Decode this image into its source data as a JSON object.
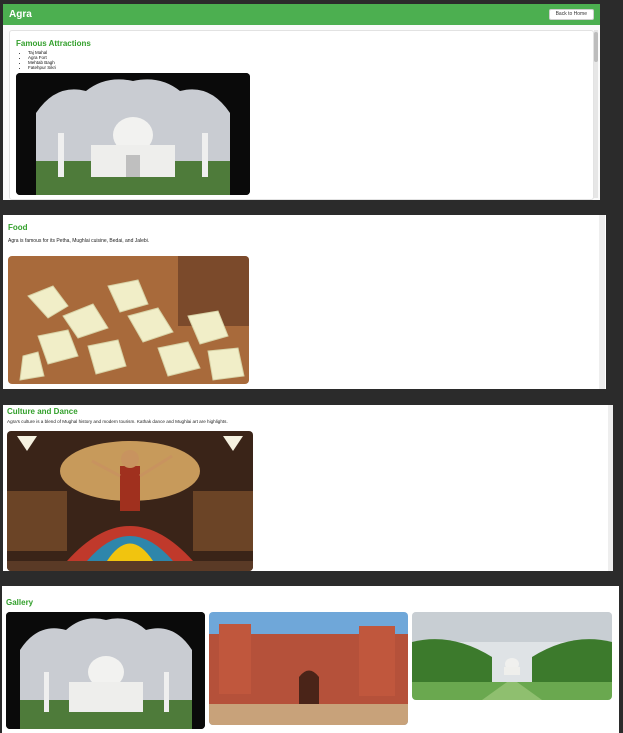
{
  "header": {
    "title": "Agra",
    "back_button": "Back to Home"
  },
  "attractions": {
    "heading": "Famous Attractions",
    "items": [
      "Taj Mahal",
      "Agra Fort",
      "Mehtab Bagh",
      "Fatehpur Sikri"
    ],
    "image_icon": "taj-mahal-photo"
  },
  "food": {
    "heading": "Food",
    "text": "Agra is famous for its Petha, Mughlai cuisine, Bedai, and Jalebi.",
    "image_icon": "petha-photo"
  },
  "culture": {
    "heading": "Culture and Dance",
    "text": "Agra's culture is a blend of Mughal history and modern tourism. Kathak dance and Mughlai art are highlights.",
    "image_icon": "kathak-dancer-photo"
  },
  "gallery": {
    "heading": "Gallery",
    "images": [
      "taj-mahal-photo",
      "agra-fort-photo",
      "taj-garden-photo"
    ]
  },
  "colors": {
    "accent": "#4caf50",
    "heading": "#33a02c",
    "backdrop": "#2b2b2b"
  }
}
